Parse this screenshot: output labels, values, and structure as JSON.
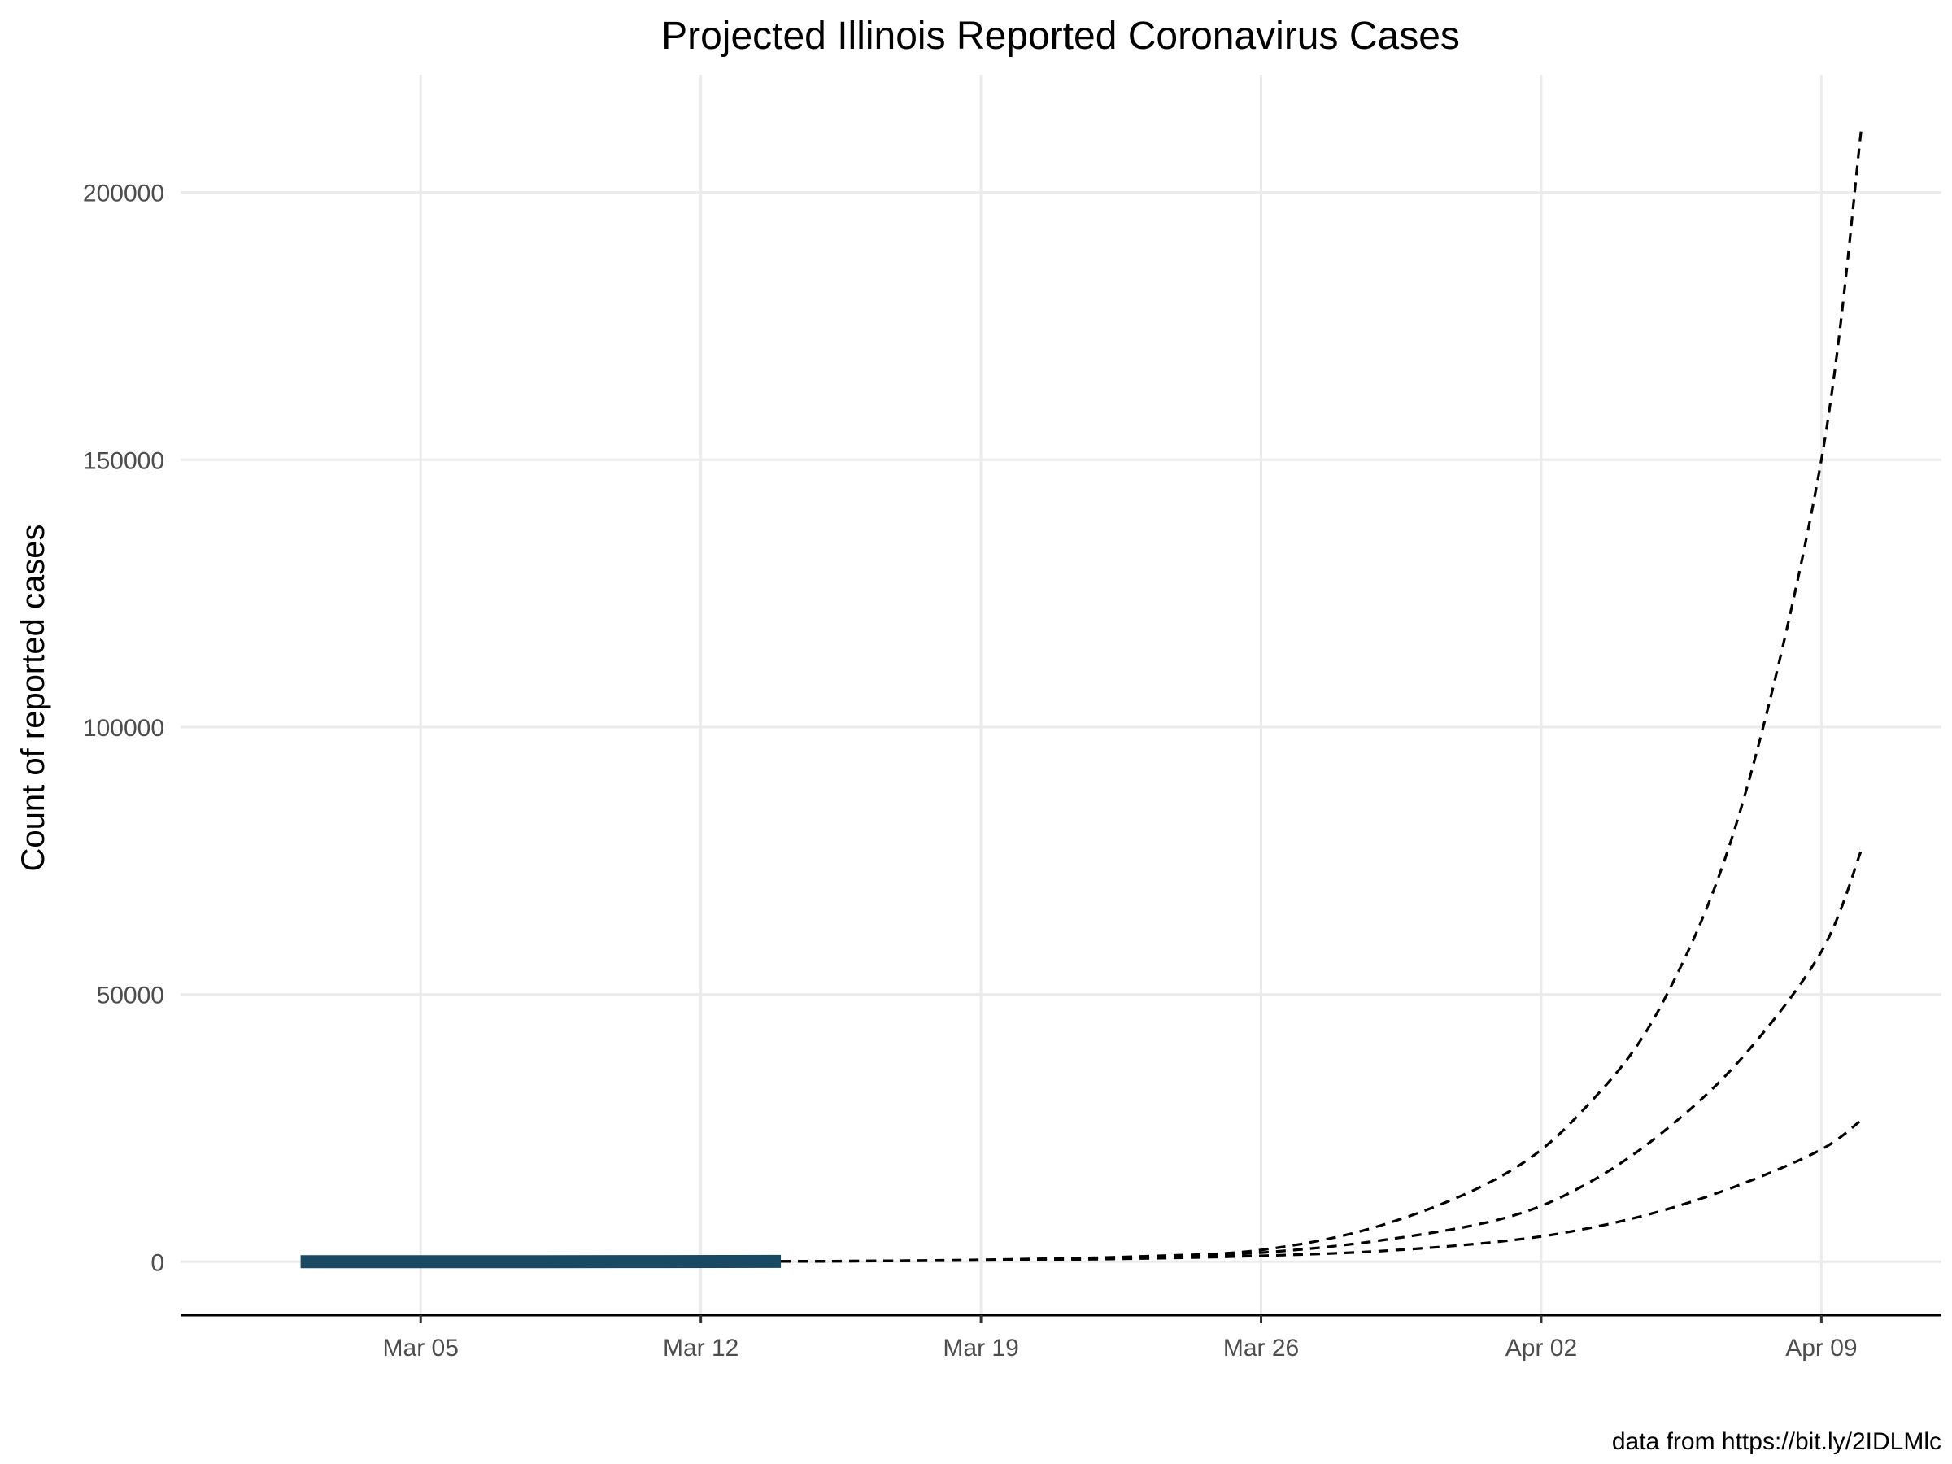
{
  "chart_data": {
    "type": "line",
    "title": "Projected Illinois Reported Coronavirus Cases",
    "xlabel": "",
    "ylabel": "Count of reported cases",
    "caption": "data from https://bit.ly/2IDLMlc",
    "x_axis_type": "date",
    "xlim": [
      "2020-02-28",
      "2020-04-12"
    ],
    "ylim": [
      -10000,
      222000
    ],
    "x_ticks": [
      {
        "date": "2020-03-05",
        "label": "Mar 05"
      },
      {
        "date": "2020-03-12",
        "label": "Mar 12"
      },
      {
        "date": "2020-03-19",
        "label": "Mar 19"
      },
      {
        "date": "2020-03-26",
        "label": "Mar 26"
      },
      {
        "date": "2020-04-02",
        "label": "Apr 02"
      },
      {
        "date": "2020-04-09",
        "label": "Apr 09"
      }
    ],
    "y_ticks": [
      {
        "value": 0,
        "label": "0"
      },
      {
        "value": 50000,
        "label": "50000"
      },
      {
        "value": 100000,
        "label": "100000"
      },
      {
        "value": 150000,
        "label": "150000"
      },
      {
        "value": 200000,
        "label": "200000"
      }
    ],
    "grid": true,
    "legend": "none",
    "colors": {
      "observed": "#1a4a63",
      "projection": "#000000",
      "grid": "#ebebeb"
    },
    "series": [
      {
        "style": "solid-thick",
        "x": [
          "2020-03-02",
          "2020-03-05",
          "2020-03-08",
          "2020-03-11",
          "2020-03-14"
        ],
        "y": [
          4,
          6,
          8,
          32,
          60
        ]
      },
      {
        "style": "dashed",
        "x": [
          "2020-03-14",
          "2020-03-17",
          "2020-03-20",
          "2020-03-23",
          "2020-03-26",
          "2020-03-29",
          "2020-04-01",
          "2020-04-03",
          "2020-04-05",
          "2020-04-07",
          "2020-04-09",
          "2020-04-10"
        ],
        "y": [
          60,
          190,
          480,
          1000,
          2200,
          6800,
          16000,
          28000,
          48000,
          85000,
          150000,
          212000
        ]
      },
      {
        "style": "dashed",
        "x": [
          "2020-03-14",
          "2020-03-17",
          "2020-03-20",
          "2020-03-23",
          "2020-03-26",
          "2020-03-29",
          "2020-04-01",
          "2020-04-03",
          "2020-04-05",
          "2020-04-07",
          "2020-04-09",
          "2020-04-10"
        ],
        "y": [
          60,
          170,
          390,
          850,
          1700,
          4000,
          8000,
          14000,
          24000,
          38000,
          58000,
          77000
        ]
      },
      {
        "style": "dashed",
        "x": [
          "2020-03-14",
          "2020-03-17",
          "2020-03-20",
          "2020-03-23",
          "2020-03-26",
          "2020-03-29",
          "2020-04-01",
          "2020-04-03",
          "2020-04-05",
          "2020-04-07",
          "2020-04-09",
          "2020-04-10"
        ],
        "y": [
          60,
          150,
          310,
          600,
          1100,
          2000,
          3800,
          6000,
          9500,
          14500,
          21000,
          26500
        ]
      }
    ]
  }
}
